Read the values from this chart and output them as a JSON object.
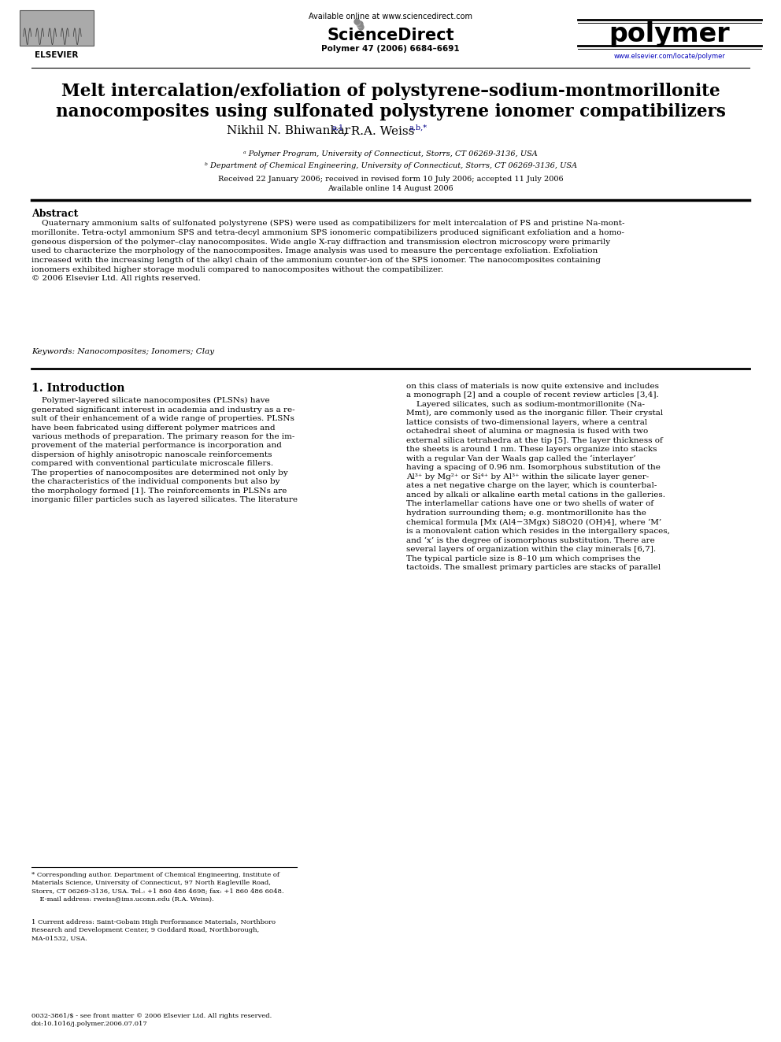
{
  "bg_color": "#ffffff",
  "fig_width": 9.92,
  "fig_height": 13.23,
  "available_online": "Available online at www.sciencedirect.com",
  "sciencedirect": "ScienceDirect",
  "journal_name": "polymer",
  "journal_info": "Polymer 47 (2006) 6684–6691",
  "journal_url": "www.elsevier.com/locate/polymer",
  "elsevier_text": "ELSEVIER",
  "title_line1": "Melt intercalation/exfoliation of polystyrene–sodium-montmorillonite",
  "title_line2": "nanocomposites using sulfonated polystyrene ionomer compatibilizers",
  "author1": "Nikhil N. Bhiwankar",
  "author1_sup": "a,1",
  "author2": ", R.A. Weiss",
  "author2_sup": "a,b,*",
  "affil_a": "ᵃ Polymer Program, University of Connecticut, Storrs, CT 06269-3136, USA",
  "affil_b": "ᵇ Department of Chemical Engineering, University of Connecticut, Storrs, CT 06269-3136, USA",
  "received": "Received 22 January 2006; received in revised form 10 July 2006; accepted 11 July 2006",
  "available": "Available online 14 August 2006",
  "abstract_title": "Abstract",
  "abstract_text": "    Quaternary ammonium salts of sulfonated polystyrene (SPS) were used as compatibilizers for melt intercalation of PS and pristine Na-mont-\nmorillonite. Tetra-octyl ammonium SPS and tetra-decyl ammonium SPS ionomeric compatibilizers produced significant exfoliation and a homo-\ngeneous dispersion of the polymer–clay nanocomposites. Wide angle X-ray diffraction and transmission electron microscopy were primarily\nused to characterize the morphology of the nanocomposites. Image analysis was used to measure the percentage exfoliation. Exfoliation\nincreased with the increasing length of the alkyl chain of the ammonium counter-ion of the SPS ionomer. The nanocomposites containing\nionomers exhibited higher storage moduli compared to nanocomposites without the compatibilizer.\n© 2006 Elsevier Ltd. All rights reserved.",
  "keywords": "Keywords: Nanocomposites; Ionomers; Clay",
  "intro_title": "1. Introduction",
  "intro_col1": "    Polymer-layered silicate nanocomposites (PLSNs) have\ngenerated significant interest in academia and industry as a re-\nsult of their enhancement of a wide range of properties. PLSNs\nhave been fabricated using different polymer matrices and\nvarious methods of preparation. The primary reason for the im-\nprovement of the material performance is incorporation and\ndispersion of highly anisotropic nanoscale reinforcements\ncompared with conventional particulate microscale fillers.\nThe properties of nanocomposites are determined not only by\nthe characteristics of the individual components but also by\nthe morphology formed [1]. The reinforcements in PLSNs are\ninorganic filler particles such as layered silicates. The literature",
  "intro_col2": "on this class of materials is now quite extensive and includes\na monograph [2] and a couple of recent review articles [3,4].\n    Layered silicates, such as sodium-montmorillonite (Na-\nMmt), are commonly used as the inorganic filler. Their crystal\nlattice consists of two-dimensional layers, where a central\noctahedral sheet of alumina or magnesia is fused with two\nexternal silica tetrahedra at the tip [5]. The layer thickness of\nthe sheets is around 1 nm. These layers organize into stacks\nwith a regular Van der Waals gap called the ‘interlayer’\nhaving a spacing of 0.96 nm. Isomorphous substitution of the\nAl³⁺ by Mg²⁺ or Si⁴⁺ by Al³⁺ within the silicate layer gener-\nates a net negative charge on the layer, which is counterbal-\nanced by alkali or alkaline earth metal cations in the galleries.\nThe interlamellar cations have one or two shells of water of\nhydration surrounding them; e.g. montmorillonite has the\nchemical formula [Mx (Al4−3Mgx) Si8O20 (OH)4], where ‘M’\nis a monovalent cation which resides in the intergallery spaces,\nand ‘x’ is the degree of isomorphous substitution. There are\nseveral layers of organization within the clay minerals [6,7].\nThe typical particle size is 8–10 μm which comprises the\ntactoids. The smallest primary particles are stacks of parallel",
  "footnote_star": "* Corresponding author. Department of Chemical Engineering, Institute of\nMaterials Science, University of Connecticut, 97 North Eagleville Road,\nStorrs, CT 06269-3136, USA. Tel.: +1 860 486 4698; fax: +1 860 486 6048.\n    E-mail address: rweiss@ims.uconn.edu (R.A. Weiss).",
  "footnote_1": "1 Current address: Saint-Gobain High Performance Materials, Northboro\nResearch and Development Center, 9 Goddard Road, Northborough,\nMA-01532, USA.",
  "footer": "0032-3861/$ - see front matter © 2006 Elsevier Ltd. All rights reserved.\ndoi:10.1016/j.polymer.2006.07.017"
}
